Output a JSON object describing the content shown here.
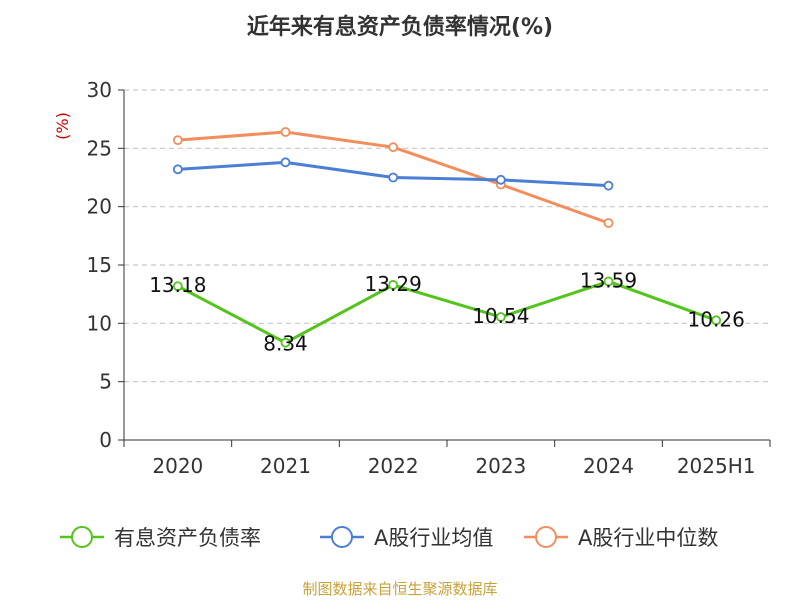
{
  "chart_data": {
    "type": "line",
    "title": "近年来有息资产负债率情况(%)",
    "ylabel": "(%)",
    "ylim": [
      0,
      30
    ],
    "yticks": [
      0,
      5,
      10,
      15,
      20,
      25,
      30
    ],
    "categories": [
      "2020",
      "2021",
      "2022",
      "2023",
      "2024",
      "2025H1"
    ],
    "grid": true,
    "legend_position": "bottom",
    "series": [
      {
        "name": "有息资产负债率",
        "color": "#52c41a",
        "values": [
          13.18,
          8.34,
          13.29,
          10.54,
          13.59,
          10.26
        ],
        "labels": [
          "13.18",
          "8.34",
          "13.29",
          "10.54",
          "13.59",
          "10.26"
        ]
      },
      {
        "name": "A股行业均值",
        "color": "#4a7fd6",
        "values": [
          23.2,
          23.8,
          22.5,
          22.3,
          21.8,
          null
        ]
      },
      {
        "name": "A股行业中位数",
        "color": "#f28e5b",
        "values": [
          25.7,
          26.4,
          25.1,
          21.9,
          18.6,
          null
        ]
      }
    ]
  },
  "source": "制图数据来自恒生聚源数据库"
}
